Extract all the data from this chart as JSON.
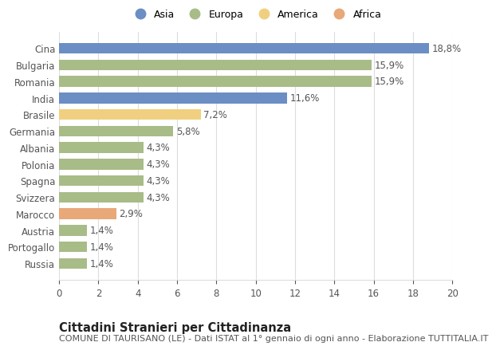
{
  "countries": [
    "Cina",
    "Bulgaria",
    "Romania",
    "India",
    "Brasile",
    "Germania",
    "Albania",
    "Polonia",
    "Spagna",
    "Svizzera",
    "Marocco",
    "Austria",
    "Portogallo",
    "Russia"
  ],
  "values": [
    18.8,
    15.9,
    15.9,
    11.6,
    7.2,
    5.8,
    4.3,
    4.3,
    4.3,
    4.3,
    2.9,
    1.4,
    1.4,
    1.4
  ],
  "labels": [
    "18,8%",
    "15,9%",
    "15,9%",
    "11,6%",
    "7,2%",
    "5,8%",
    "4,3%",
    "4,3%",
    "4,3%",
    "4,3%",
    "2,9%",
    "1,4%",
    "1,4%",
    "1,4%"
  ],
  "continents": [
    "Asia",
    "Europa",
    "Europa",
    "Asia",
    "America",
    "Europa",
    "Europa",
    "Europa",
    "Europa",
    "Europa",
    "Africa",
    "Europa",
    "Europa",
    "Europa"
  ],
  "colors": {
    "Asia": "#6b8ec4",
    "Europa": "#a8bc88",
    "America": "#f0d080",
    "Africa": "#e8a878"
  },
  "xlim": [
    0,
    20
  ],
  "xticks": [
    0,
    2,
    4,
    6,
    8,
    10,
    12,
    14,
    16,
    18,
    20
  ],
  "title": "Cittadini Stranieri per Cittadinanza",
  "subtitle": "COMUNE DI TAURISANO (LE) - Dati ISTAT al 1° gennaio di ogni anno - Elaborazione TUTTITALIA.IT",
  "background_color": "#ffffff",
  "grid_color": "#dddddd",
  "bar_height": 0.65,
  "label_fontsize": 8.5,
  "tick_fontsize": 8.5,
  "title_fontsize": 10.5,
  "subtitle_fontsize": 8,
  "legend_order": [
    "Asia",
    "Europa",
    "America",
    "Africa"
  ]
}
